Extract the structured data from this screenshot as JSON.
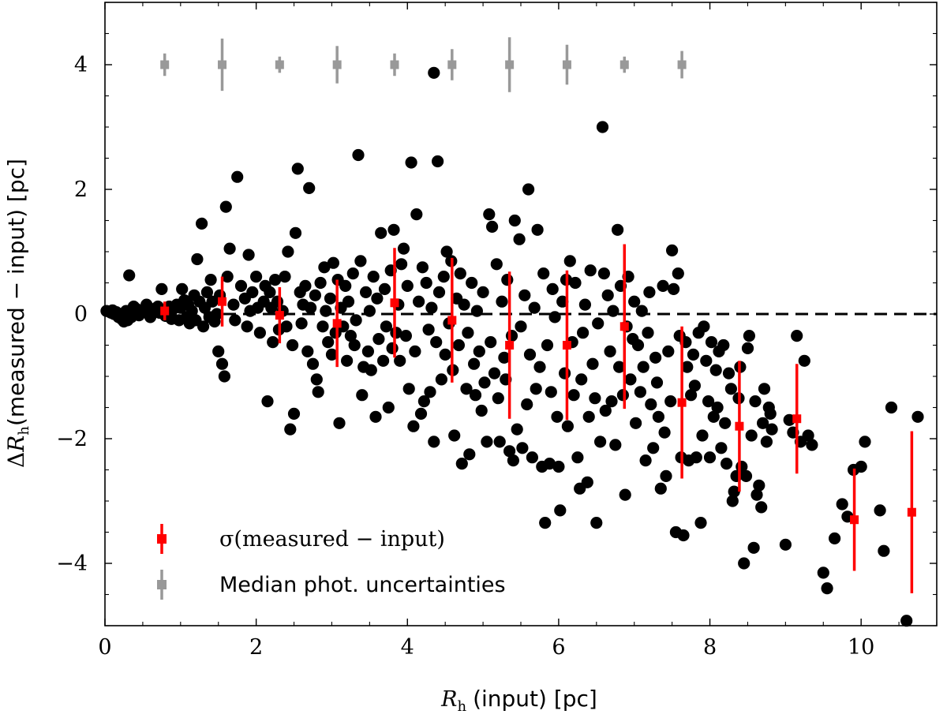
{
  "chart_data": {
    "type": "scatter",
    "xlabel_math": "R",
    "xlabel_sub": "h",
    "xlabel": "(input) [pc]",
    "ylabel_delta": "Δ",
    "ylabel_math": "R",
    "ylabel_sub": "h",
    "ylabel": "(measured − input) [pc]",
    "xlim": [
      0,
      11
    ],
    "ylim": [
      -5,
      5
    ],
    "xticks": [
      0,
      2,
      4,
      6,
      8,
      10
    ],
    "yticks": [
      -4,
      -2,
      0,
      2,
      4
    ],
    "xtick_labels": [
      "0",
      "2",
      "4",
      "6",
      "8",
      "10"
    ],
    "ytick_labels": [
      "−4",
      "−2",
      "0",
      "2",
      "4"
    ],
    "reference_line": {
      "y": 0,
      "style": "dashed",
      "color": "#000000"
    },
    "legend": {
      "location": "lower-left",
      "entries": [
        {
          "label": "σ(measured − input)",
          "color": "#ff0000"
        },
        {
          "label": "Median phot. uncertainties",
          "color": "#999999"
        }
      ]
    },
    "colors": {
      "points": "#000000",
      "sigma": "#ff0000",
      "median": "#999999"
    },
    "points": [
      [
        0.02,
        0.05
      ],
      [
        0.05,
        0.04
      ],
      [
        0.08,
        0.02
      ],
      [
        0.1,
        0.06
      ],
      [
        0.12,
        0.0
      ],
      [
        0.15,
        0.03
      ],
      [
        0.18,
        -0.05
      ],
      [
        0.2,
        0.0
      ],
      [
        0.22,
        -0.08
      ],
      [
        0.25,
        -0.12
      ],
      [
        0.28,
        0.05
      ],
      [
        0.3,
        -0.1
      ],
      [
        0.32,
        0.62
      ],
      [
        0.35,
        -0.05
      ],
      [
        0.38,
        0.12
      ],
      [
        0.42,
        0.08
      ],
      [
        0.45,
        -0.02
      ],
      [
        0.5,
        0.05
      ],
      [
        0.55,
        0.15
      ],
      [
        0.58,
        0.1
      ],
      [
        0.6,
        -0.05
      ],
      [
        0.65,
        0.08
      ],
      [
        0.7,
        0.12
      ],
      [
        0.72,
        0.02
      ],
      [
        0.75,
        0.4
      ],
      [
        0.78,
        0.05
      ],
      [
        0.8,
        -0.03
      ],
      [
        0.85,
        0.12
      ],
      [
        0.88,
        -0.08
      ],
      [
        0.9,
        0.08
      ],
      [
        0.95,
        0.15
      ],
      [
        0.98,
        -0.1
      ],
      [
        1.0,
        0.1
      ],
      [
        1.02,
        0.4
      ],
      [
        1.05,
        0.22
      ],
      [
        1.08,
        -0.05
      ],
      [
        1.1,
        0.15
      ],
      [
        1.12,
        -0.15
      ],
      [
        1.15,
        0.05
      ],
      [
        1.18,
        0.3
      ],
      [
        1.2,
        -0.1
      ],
      [
        1.22,
        0.88
      ],
      [
        1.25,
        0.2
      ],
      [
        1.28,
        1.45
      ],
      [
        1.3,
        -0.2
      ],
      [
        1.32,
        0.1
      ],
      [
        1.35,
        0.35
      ],
      [
        1.38,
        -0.05
      ],
      [
        1.4,
        0.55
      ],
      [
        1.42,
        0.2
      ],
      [
        1.45,
        -0.12
      ],
      [
        1.48,
        0.0
      ],
      [
        1.5,
        -0.6
      ],
      [
        1.52,
        0.3
      ],
      [
        1.55,
        -0.8
      ],
      [
        1.58,
        -1.0
      ],
      [
        1.6,
        1.72
      ],
      [
        1.62,
        0.6
      ],
      [
        1.65,
        1.05
      ],
      [
        1.7,
        0.15
      ],
      [
        1.72,
        -0.1
      ],
      [
        1.75,
        2.2
      ],
      [
        1.8,
        0.45
      ],
      [
        1.85,
        0.25
      ],
      [
        1.88,
        -0.2
      ],
      [
        1.9,
        0.95
      ],
      [
        1.92,
        0.05
      ],
      [
        1.95,
        0.35
      ],
      [
        2.0,
        0.6
      ],
      [
        2.02,
        0.1
      ],
      [
        2.05,
        -0.3
      ],
      [
        2.1,
        0.2
      ],
      [
        2.12,
        0.45
      ],
      [
        2.15,
        -1.4
      ],
      [
        2.18,
        0.35
      ],
      [
        2.2,
        0.1
      ],
      [
        2.22,
        -0.45
      ],
      [
        2.25,
        0.55
      ],
      [
        2.28,
        0.2
      ],
      [
        2.3,
        -0.25
      ],
      [
        2.35,
        0.05
      ],
      [
        2.38,
        0.6
      ],
      [
        2.4,
        -0.2
      ],
      [
        2.42,
        1.0
      ],
      [
        2.45,
        -1.85
      ],
      [
        2.48,
        -0.5
      ],
      [
        2.5,
        -1.6
      ],
      [
        2.52,
        1.3
      ],
      [
        2.55,
        2.33
      ],
      [
        2.58,
        0.35
      ],
      [
        2.6,
        -0.15
      ],
      [
        2.62,
        0.15
      ],
      [
        2.65,
        0.45
      ],
      [
        2.68,
        -0.6
      ],
      [
        2.7,
        2.02
      ],
      [
        2.72,
        0.1
      ],
      [
        2.75,
        -0.8
      ],
      [
        2.78,
        0.3
      ],
      [
        2.8,
        -1.05
      ],
      [
        2.82,
        -1.25
      ],
      [
        2.85,
        0.5
      ],
      [
        2.88,
        -0.2
      ],
      [
        2.9,
        0.75
      ],
      [
        2.92,
        0.05
      ],
      [
        2.95,
        -0.45
      ],
      [
        2.98,
        0.25
      ],
      [
        3.0,
        -0.65
      ],
      [
        3.02,
        0.82
      ],
      [
        3.05,
        -0.3
      ],
      [
        3.08,
        0.55
      ],
      [
        3.1,
        -1.75
      ],
      [
        3.12,
        0.1
      ],
      [
        3.15,
        -0.2
      ],
      [
        3.18,
        0.45
      ],
      [
        3.2,
        -0.75
      ],
      [
        3.22,
        0.2
      ],
      [
        3.25,
        -0.35
      ],
      [
        3.28,
        0.65
      ],
      [
        3.3,
        -0.5
      ],
      [
        3.32,
        -0.1
      ],
      [
        3.35,
        2.55
      ],
      [
        3.38,
        0.85
      ],
      [
        3.4,
        -1.3
      ],
      [
        3.42,
        -0.85
      ],
      [
        3.45,
        0.35
      ],
      [
        3.48,
        -0.6
      ],
      [
        3.5,
        0.05
      ],
      [
        3.52,
        -0.9
      ],
      [
        3.55,
        0.6
      ],
      [
        3.58,
        -1.65
      ],
      [
        3.6,
        0.25
      ],
      [
        3.62,
        -0.4
      ],
      [
        3.65,
        1.3
      ],
      [
        3.68,
        -0.75
      ],
      [
        3.7,
        0.4
      ],
      [
        3.72,
        -0.2
      ],
      [
        3.75,
        -1.5
      ],
      [
        3.78,
        0.7
      ],
      [
        3.8,
        -0.55
      ],
      [
        3.82,
        1.35
      ],
      [
        3.85,
        -0.3
      ],
      [
        3.88,
        0.15
      ],
      [
        3.9,
        -0.75
      ],
      [
        3.92,
        0.8
      ],
      [
        3.95,
        1.05
      ],
      [
        3.98,
        -0.35
      ],
      [
        4.0,
        0.45
      ],
      [
        4.02,
        -1.2
      ],
      [
        4.05,
        2.43
      ],
      [
        4.08,
        -1.8
      ],
      [
        4.1,
        -0.6
      ],
      [
        4.12,
        1.6
      ],
      [
        4.15,
        0.2
      ],
      [
        4.18,
        -1.6
      ],
      [
        4.2,
        0.75
      ],
      [
        4.22,
        -1.4
      ],
      [
        4.25,
        0.5
      ],
      [
        4.28,
        -0.25
      ],
      [
        4.3,
        -1.25
      ],
      [
        4.32,
        0.1
      ],
      [
        4.35,
        -2.05
      ],
      [
        4.38,
        -0.45
      ],
      [
        4.4,
        2.45
      ],
      [
        4.42,
        0.35
      ],
      [
        4.45,
        -1.05
      ],
      [
        4.48,
        0.6
      ],
      [
        4.5,
        -0.65
      ],
      [
        4.52,
        1.0
      ],
      [
        4.55,
        -0.15
      ],
      [
        4.58,
        0.85
      ],
      [
        4.6,
        -0.9
      ],
      [
        4.62,
        -1.95
      ],
      [
        4.65,
        0.25
      ],
      [
        4.68,
        -0.5
      ],
      [
        4.7,
        0.65
      ],
      [
        4.72,
        -2.4
      ],
      [
        4.75,
        0.15
      ],
      [
        4.78,
        -1.2
      ],
      [
        4.8,
        -0.3
      ],
      [
        4.82,
        -2.25
      ],
      [
        4.85,
        0.5
      ],
      [
        4.88,
        -0.8
      ],
      [
        4.9,
        -1.3
      ],
      [
        4.92,
        0.05
      ],
      [
        4.95,
        -0.6
      ],
      [
        4.98,
        -1.55
      ],
      [
        5.0,
        0.35
      ],
      [
        5.02,
        -1.1
      ],
      [
        5.05,
        -2.05
      ],
      [
        5.08,
        1.6
      ],
      [
        5.1,
        -0.45
      ],
      [
        5.12,
        1.4
      ],
      [
        5.15,
        -0.95
      ],
      [
        5.18,
        0.8
      ],
      [
        5.2,
        -1.35
      ],
      [
        5.22,
        -2.05
      ],
      [
        5.25,
        0.2
      ],
      [
        5.28,
        -0.7
      ],
      [
        5.3,
        -1.05
      ],
      [
        5.32,
        0.55
      ],
      [
        5.35,
        -2.2
      ],
      [
        5.38,
        -0.35
      ],
      [
        5.4,
        -2.35
      ],
      [
        5.42,
        1.5
      ],
      [
        5.45,
        -1.85
      ],
      [
        5.48,
        1.2
      ],
      [
        5.5,
        -0.2
      ],
      [
        5.52,
        -2.15
      ],
      [
        5.55,
        0.3
      ],
      [
        5.58,
        -1.45
      ],
      [
        5.6,
        2.0
      ],
      [
        5.62,
        -0.65
      ],
      [
        5.65,
        -2.3
      ],
      [
        5.68,
        0.1
      ],
      [
        5.7,
        -1.2
      ],
      [
        5.72,
        1.35
      ],
      [
        5.75,
        -0.85
      ],
      [
        5.78,
        -2.45
      ],
      [
        5.8,
        0.65
      ],
      [
        5.82,
        -3.35
      ],
      [
        5.85,
        -0.5
      ],
      [
        5.88,
        -2.4
      ],
      [
        5.9,
        -1.25
      ],
      [
        5.92,
        0.4
      ],
      [
        5.95,
        -0.05
      ],
      [
        5.98,
        -1.65
      ],
      [
        6.0,
        -2.45
      ],
      [
        6.02,
        -3.15
      ],
      [
        6.05,
        0.2
      ],
      [
        6.08,
        -0.95
      ],
      [
        6.1,
        0.55
      ],
      [
        6.12,
        -1.8
      ],
      [
        6.15,
        0.85
      ],
      [
        6.18,
        -0.45
      ],
      [
        6.2,
        -1.3
      ],
      [
        6.22,
        0.5
      ],
      [
        6.25,
        -2.3
      ],
      [
        6.28,
        -2.8
      ],
      [
        6.3,
        -1.05
      ],
      [
        6.32,
        -0.3
      ],
      [
        6.35,
        0.15
      ],
      [
        6.38,
        -2.7
      ],
      [
        6.4,
        -1.65
      ],
      [
        6.42,
        0.7
      ],
      [
        6.45,
        -0.8
      ],
      [
        6.48,
        -1.35
      ],
      [
        6.5,
        -3.35
      ],
      [
        6.52,
        -0.15
      ],
      [
        6.55,
        -2.05
      ],
      [
        6.58,
        3.0
      ],
      [
        6.6,
        0.65
      ],
      [
        6.62,
        -1.55
      ],
      [
        6.65,
        0.3
      ],
      [
        6.68,
        -0.6
      ],
      [
        6.7,
        -1.4
      ],
      [
        6.72,
        0.05
      ],
      [
        6.75,
        -2.1
      ],
      [
        6.78,
        1.35
      ],
      [
        6.8,
        -0.85
      ],
      [
        6.82,
        0.45
      ],
      [
        6.85,
        -1.3
      ],
      [
        6.88,
        -2.9
      ],
      [
        6.9,
        -0.2
      ],
      [
        6.92,
        0.6
      ],
      [
        6.95,
        -1.05
      ],
      [
        6.98,
        -0.4
      ],
      [
        7.0,
        0.2
      ],
      [
        7.02,
        -1.75
      ],
      [
        7.05,
        -0.5
      ],
      [
        7.08,
        -1.25
      ],
      [
        7.1,
        0.05
      ],
      [
        7.12,
        -0.85
      ],
      [
        7.15,
        -2.35
      ],
      [
        7.18,
        -0.3
      ],
      [
        7.2,
        0.35
      ],
      [
        7.22,
        -1.45
      ],
      [
        7.25,
        -2.15
      ],
      [
        7.28,
        -0.7
      ],
      [
        7.3,
        -1.1
      ],
      [
        7.32,
        -1.65
      ],
      [
        7.35,
        -2.8
      ],
      [
        7.38,
        0.45
      ],
      [
        7.4,
        -1.9
      ],
      [
        7.42,
        -2.6
      ],
      [
        7.45,
        -0.6
      ],
      [
        7.48,
        -1.4
      ],
      [
        7.5,
        1.02
      ],
      [
        7.52,
        0.4
      ],
      [
        7.55,
        -3.5
      ],
      [
        7.58,
        0.65
      ],
      [
        7.6,
        -0.35
      ],
      [
        7.62,
        -2.3
      ],
      [
        7.65,
        -3.55
      ],
      [
        7.68,
        -0.45
      ],
      [
        7.7,
        -0.85
      ],
      [
        7.72,
        -2.35
      ],
      [
        7.75,
        -1.3
      ],
      [
        7.78,
        -0.65
      ],
      [
        7.8,
        -1.15
      ],
      [
        7.82,
        -2.3
      ],
      [
        7.85,
        -0.3
      ],
      [
        7.88,
        -3.35
      ],
      [
        7.9,
        -1.95
      ],
      [
        7.92,
        -0.2
      ],
      [
        7.95,
        -0.75
      ],
      [
        7.98,
        -1.4
      ],
      [
        8.0,
        -2.3
      ],
      [
        8.02,
        -0.45
      ],
      [
        8.05,
        -1.65
      ],
      [
        8.08,
        -0.9
      ],
      [
        8.1,
        -1.5
      ],
      [
        8.12,
        -0.6
      ],
      [
        8.15,
        -2.15
      ],
      [
        8.18,
        -0.5
      ],
      [
        8.2,
        -1.75
      ],
      [
        8.22,
        -2.4
      ],
      [
        8.25,
        -0.95
      ],
      [
        8.28,
        -1.2
      ],
      [
        8.3,
        -3.0
      ],
      [
        8.32,
        -2.85
      ],
      [
        8.35,
        -2.6
      ],
      [
        8.38,
        -1.35
      ],
      [
        8.4,
        -0.85
      ],
      [
        8.42,
        -2.45
      ],
      [
        8.45,
        -4.0
      ],
      [
        8.48,
        -2.6
      ],
      [
        8.5,
        -0.55
      ],
      [
        8.52,
        -0.35
      ],
      [
        8.55,
        -1.95
      ],
      [
        8.58,
        -3.75
      ],
      [
        8.6,
        -1.4
      ],
      [
        8.62,
        -2.9
      ],
      [
        8.65,
        -2.75
      ],
      [
        8.68,
        -3.1
      ],
      [
        8.7,
        -1.75
      ],
      [
        8.72,
        -1.2
      ],
      [
        8.75,
        -2.05
      ],
      [
        8.78,
        -1.5
      ],
      [
        8.8,
        -1.6
      ],
      [
        8.82,
        -1.85
      ],
      [
        9.0,
        -3.7
      ],
      [
        9.05,
        -1.7
      ],
      [
        9.1,
        -1.9
      ],
      [
        9.15,
        -0.35
      ],
      [
        9.2,
        -2.05
      ],
      [
        9.25,
        -0.75
      ],
      [
        9.3,
        -1.95
      ],
      [
        9.35,
        -2.1
      ],
      [
        9.5,
        -4.15
      ],
      [
        9.55,
        -4.4
      ],
      [
        9.65,
        -3.6
      ],
      [
        9.75,
        -3.05
      ],
      [
        9.82,
        -3.25
      ],
      [
        9.9,
        -2.5
      ],
      [
        10.0,
        -2.45
      ],
      [
        10.05,
        -2.05
      ],
      [
        10.25,
        -3.15
      ],
      [
        10.3,
        -3.8
      ],
      [
        10.4,
        -1.5
      ],
      [
        10.6,
        -4.92
      ],
      [
        10.75,
        -1.65
      ],
      [
        4.35,
        3.87
      ]
    ],
    "sigma_series": {
      "name": "σ(measured − input)",
      "points": [
        {
          "x": 0.79,
          "y": 0.05,
          "err": 0.15
        },
        {
          "x": 1.55,
          "y": 0.2,
          "err": 0.4
        },
        {
          "x": 2.31,
          "y": -0.02,
          "err": 0.45
        },
        {
          "x": 3.07,
          "y": -0.15,
          "err": 0.7
        },
        {
          "x": 3.83,
          "y": 0.18,
          "err": 0.88
        },
        {
          "x": 4.59,
          "y": -0.1,
          "err": 1.0
        },
        {
          "x": 5.35,
          "y": -0.5,
          "err": 1.18
        },
        {
          "x": 6.11,
          "y": -0.5,
          "err": 1.2
        },
        {
          "x": 6.87,
          "y": -0.2,
          "err": 1.32
        },
        {
          "x": 7.63,
          "y": -1.42,
          "err": 1.22
        },
        {
          "x": 8.39,
          "y": -1.8,
          "err": 1.05
        },
        {
          "x": 9.15,
          "y": -1.68,
          "err": 0.88
        },
        {
          "x": 9.91,
          "y": -3.3,
          "err": 0.82
        },
        {
          "x": 10.67,
          "y": -3.18,
          "err": 1.3
        }
      ]
    },
    "median_series": {
      "name": "Median phot. uncertainties",
      "y": 4.0,
      "points": [
        {
          "x": 0.79,
          "err": 0.18
        },
        {
          "x": 1.55,
          "err": 0.42
        },
        {
          "x": 2.31,
          "err": 0.13
        },
        {
          "x": 3.07,
          "err": 0.3
        },
        {
          "x": 3.83,
          "err": 0.18
        },
        {
          "x": 4.59,
          "err": 0.25
        },
        {
          "x": 5.35,
          "err": 0.44
        },
        {
          "x": 6.11,
          "err": 0.32
        },
        {
          "x": 6.87,
          "err": 0.13
        },
        {
          "x": 7.63,
          "err": 0.22
        }
      ]
    }
  }
}
